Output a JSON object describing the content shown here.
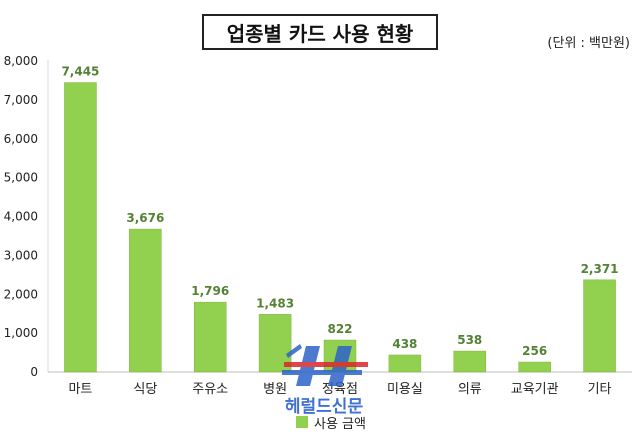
{
  "chart_data": {
    "type": "bar",
    "title": "업종별 카드 사용 현황",
    "unit_note": "(단위 : 백만원)",
    "categories": [
      "마트",
      "식당",
      "주유소",
      "병원",
      "정육점",
      "미용실",
      "의류",
      "교육기관",
      "기타"
    ],
    "series": [
      {
        "name": "사용 금액",
        "values": [
          7445,
          3676,
          1796,
          1483,
          822,
          438,
          538,
          256,
          2371
        ]
      }
    ],
    "value_labels": [
      "7,445",
      "3,676",
      "1,796",
      "1,483",
      "822",
      "438",
      "538",
      "256",
      "2,371"
    ],
    "y_ticks": [
      "0",
      "1,000",
      "2,000",
      "3,000",
      "4,000",
      "5,000",
      "6,000",
      "7,000",
      "8,000"
    ],
    "ylim": [
      0,
      8000
    ],
    "grid": false,
    "legend_position": "bottom",
    "bar_color": "#92d050",
    "label_color": "#548235",
    "watermark_text": "헤럴드신문"
  }
}
